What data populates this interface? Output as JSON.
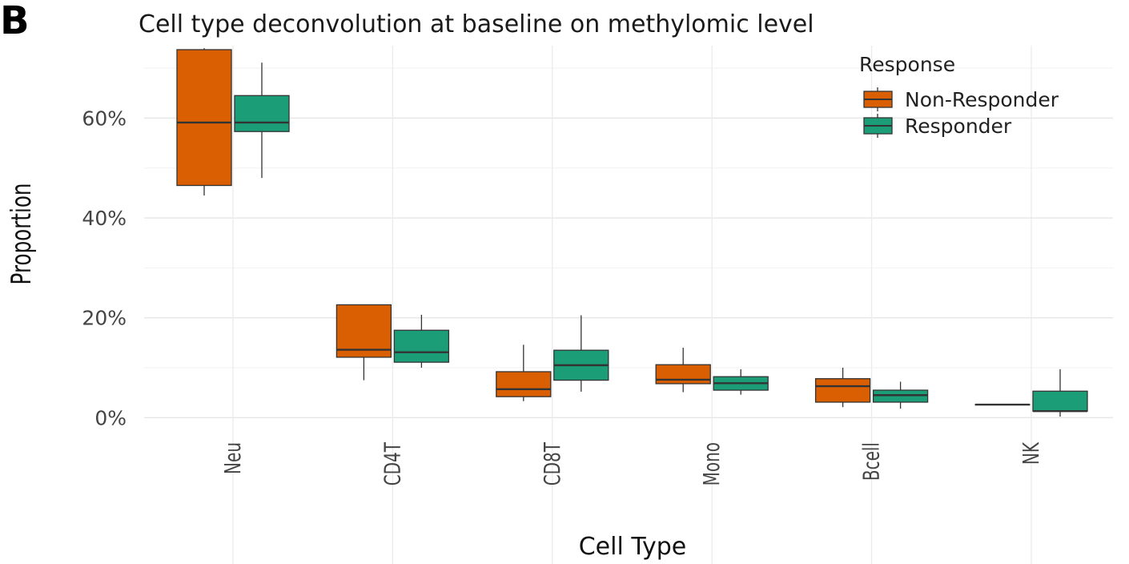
{
  "panel_label": "B",
  "chart_data": {
    "type": "boxplot",
    "title": "Cell type deconvolution at baseline on methylomic level",
    "xlabel": "Cell Type",
    "ylabel": "Proportion",
    "ylim": [
      -0.03,
      0.745
    ],
    "yticks": [
      0,
      0.2,
      0.4,
      0.6
    ],
    "ytick_labels": [
      "0%",
      "20%",
      "40%",
      "60%"
    ],
    "grid": true,
    "categories": [
      "Neu",
      "CD4T",
      "CD8T",
      "Mono",
      "Bcell",
      "NK"
    ],
    "legend": {
      "title": "Response",
      "position": "top-right"
    },
    "series": [
      {
        "name": "Non-Responder",
        "color": "#D95F02",
        "boxes": [
          {
            "min": 0.445,
            "q1": 0.465,
            "median": 0.591,
            "q3": 0.737,
            "max": 0.74
          },
          {
            "min": 0.075,
            "q1": 0.121,
            "median": 0.136,
            "q3": 0.226,
            "max": 0.226
          },
          {
            "min": 0.033,
            "q1": 0.042,
            "median": 0.057,
            "q3": 0.092,
            "max": 0.146
          },
          {
            "min": 0.051,
            "q1": 0.068,
            "median": 0.076,
            "q3": 0.106,
            "max": 0.14
          },
          {
            "min": 0.021,
            "q1": 0.031,
            "median": 0.063,
            "q3": 0.078,
            "max": 0.1
          },
          {
            "min": 0.026,
            "q1": 0.026,
            "median": 0.026,
            "q3": 0.026,
            "max": 0.026
          }
        ]
      },
      {
        "name": "Responder",
        "color": "#1B9E77",
        "boxes": [
          {
            "min": 0.48,
            "q1": 0.573,
            "median": 0.591,
            "q3": 0.645,
            "max": 0.711
          },
          {
            "min": 0.1,
            "q1": 0.111,
            "median": 0.131,
            "q3": 0.175,
            "max": 0.206
          },
          {
            "min": 0.052,
            "q1": 0.075,
            "median": 0.105,
            "q3": 0.135,
            "max": 0.205
          },
          {
            "min": 0.046,
            "q1": 0.055,
            "median": 0.069,
            "q3": 0.082,
            "max": 0.097
          },
          {
            "min": 0.018,
            "q1": 0.031,
            "median": 0.045,
            "q3": 0.055,
            "max": 0.072
          },
          {
            "min": 0.002,
            "q1": 0.013,
            "median": 0.013,
            "q3": 0.053,
            "max": 0.097
          }
        ]
      }
    ]
  }
}
